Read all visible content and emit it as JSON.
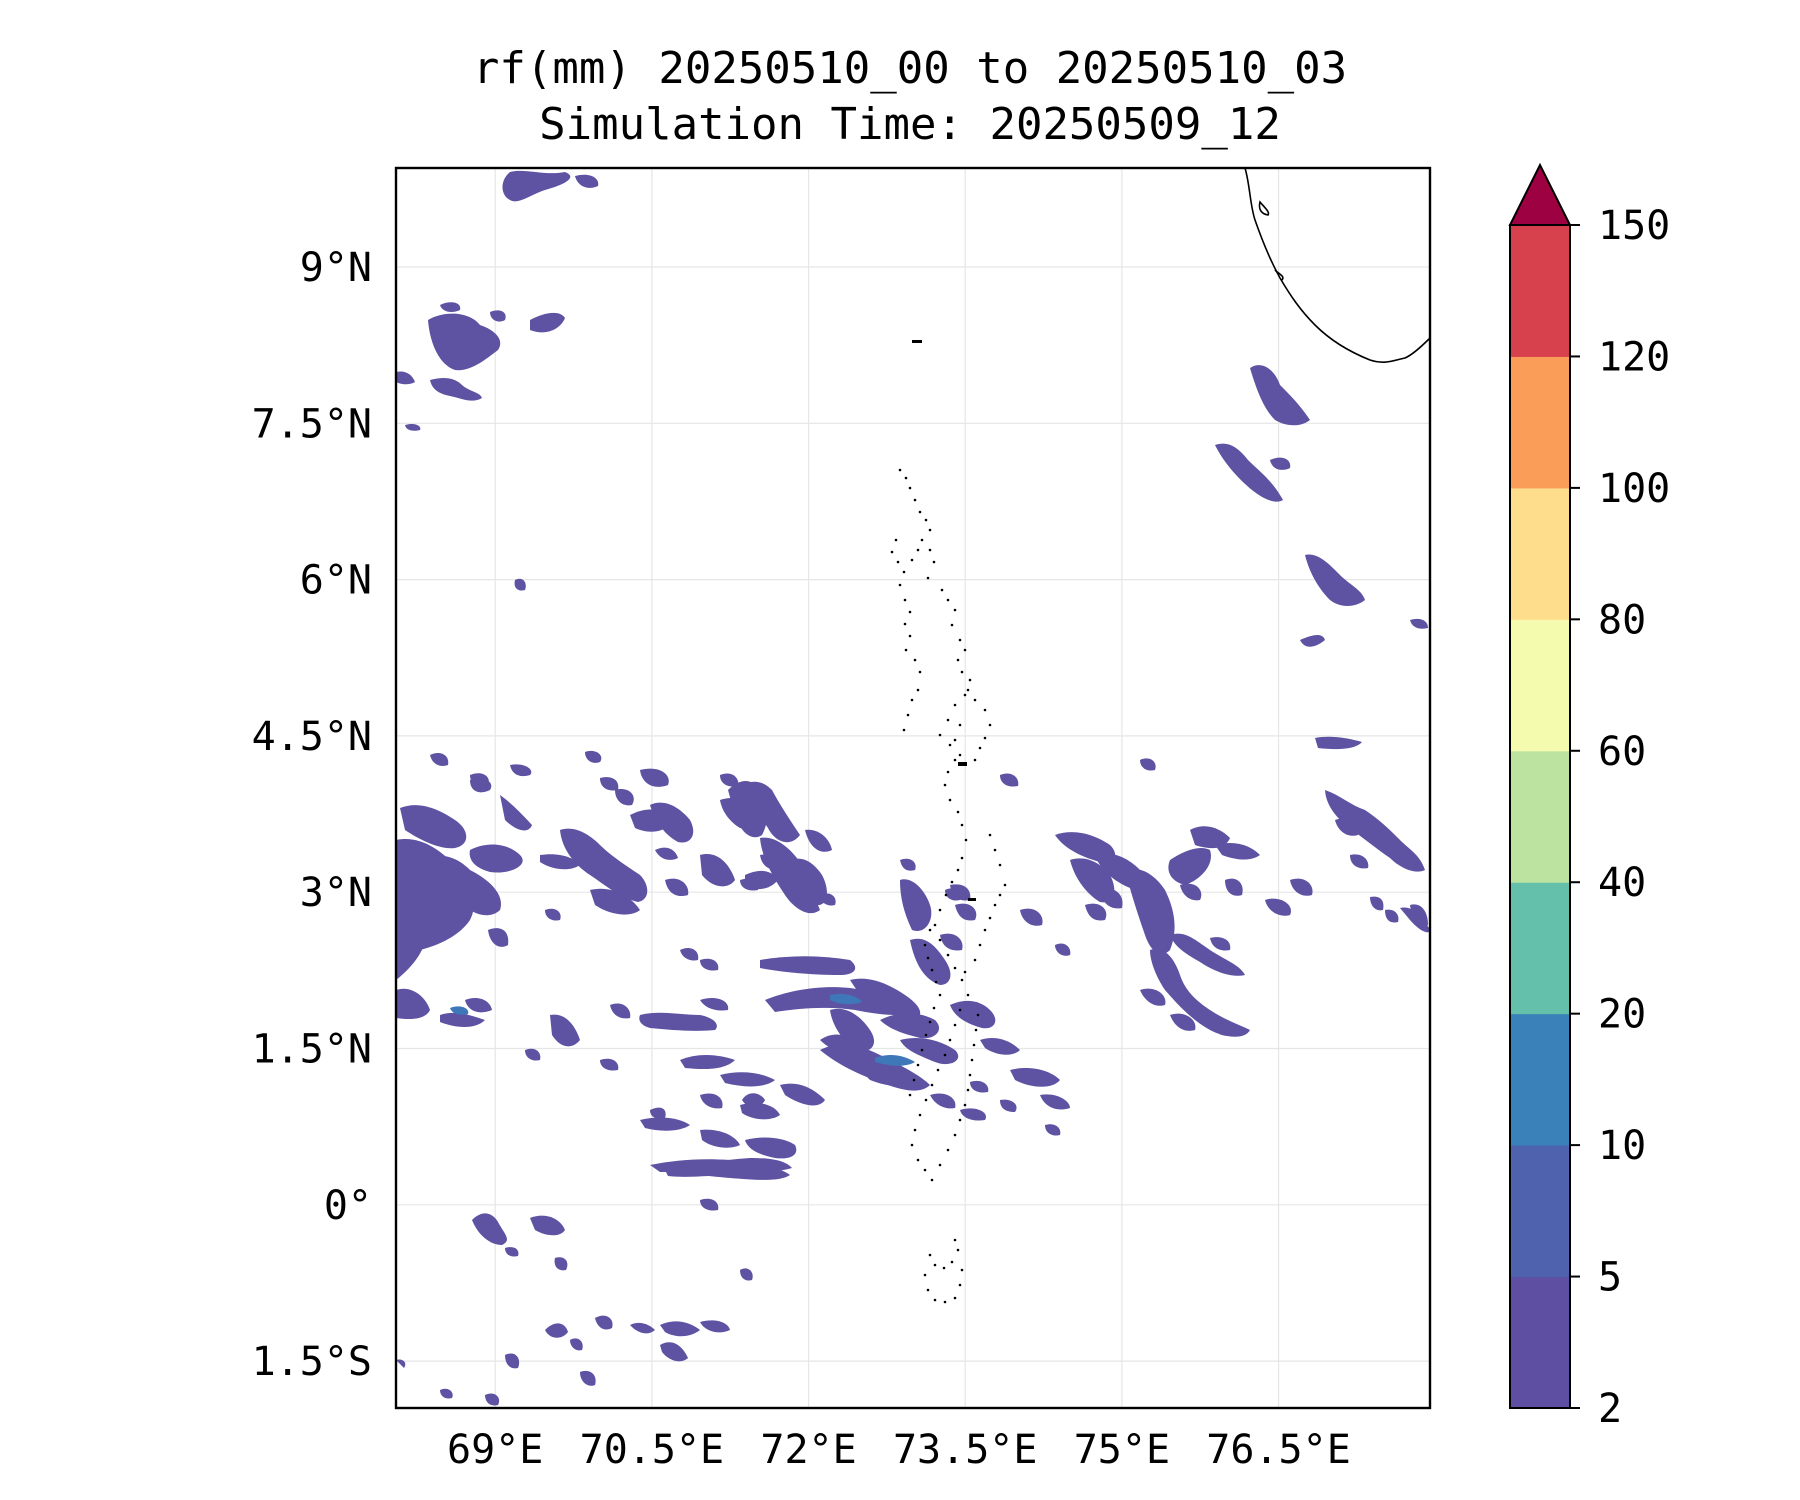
{
  "title": {
    "line1": "rf(mm) 20250510_00 to 20250510_03",
    "line2": "Simulation Time: 20250509_12"
  },
  "map": {
    "lat_labels": [
      "9°N",
      "7.5°N",
      "6°N",
      "4.5°N",
      "3°N",
      "1.5°N",
      "0°",
      "1.5°S"
    ],
    "lon_labels": [
      "69°E",
      "70.5°E",
      "72°E",
      "73.5°E",
      "75°E",
      "76.5°E"
    ],
    "extent": {
      "lon_min": 68.05,
      "lon_max": 77.95,
      "lat_min": -1.95,
      "lat_max": 9.95
    },
    "rain_color": "#5e52a3",
    "rain_color_light": "#5a57a8",
    "rain_color_core": "#3f78b8",
    "gridlines": true
  },
  "colorbar": {
    "levels": [
      "2",
      "5",
      "10",
      "20",
      "40",
      "60",
      "80",
      "100",
      "120",
      "150"
    ],
    "colors": [
      "#5e4fa2",
      "#4f62ad",
      "#3a80b9",
      "#64c0ab",
      "#bde3a0",
      "#f4fbaf",
      "#fedd8d",
      "#f99d59",
      "#d7414e",
      "#9e0142"
    ],
    "extend": "max"
  }
}
